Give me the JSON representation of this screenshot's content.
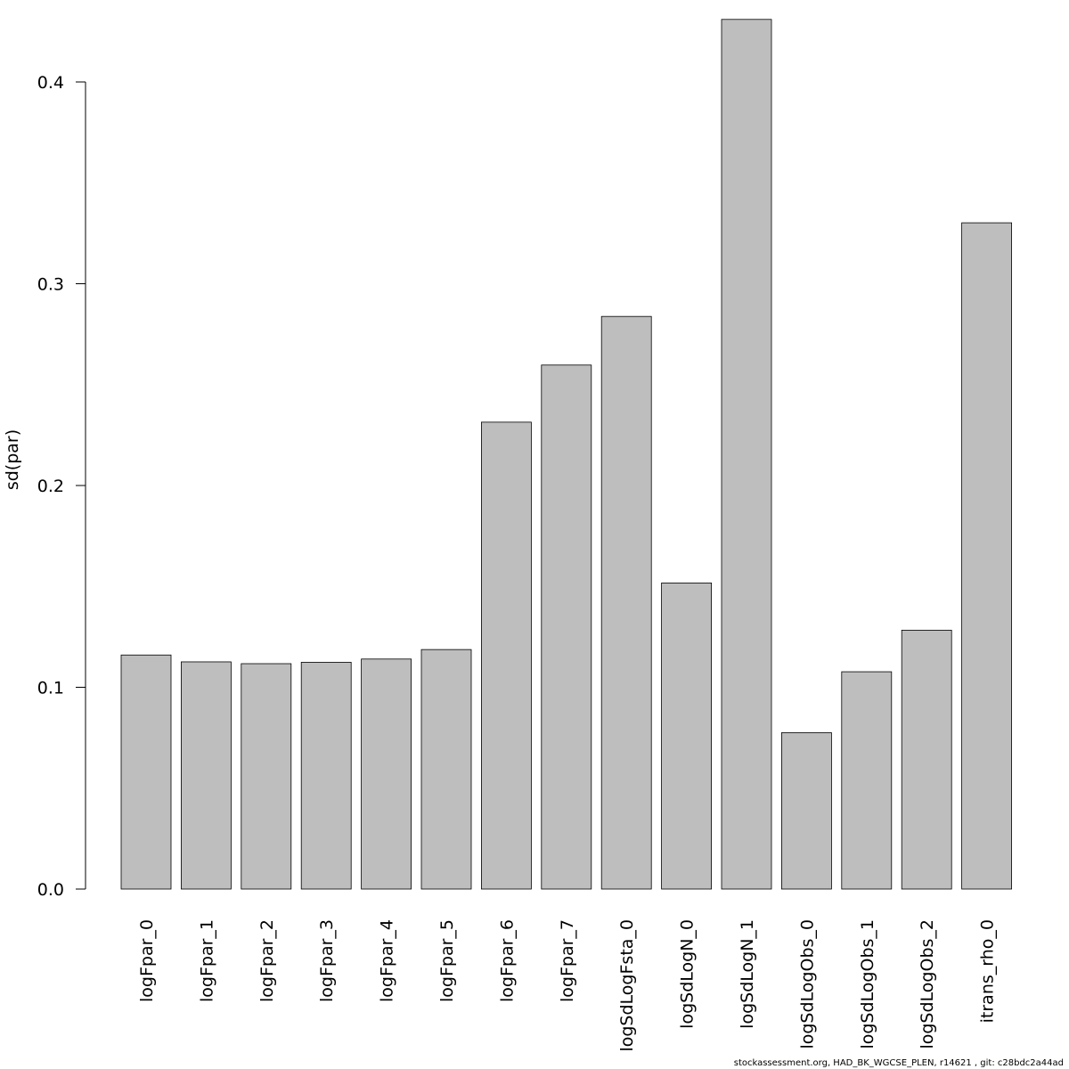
{
  "chart_data": {
    "type": "bar",
    "categories": [
      "logFpar_0",
      "logFpar_1",
      "logFpar_2",
      "logFpar_3",
      "logFpar_4",
      "logFpar_5",
      "logFpar_6",
      "logFpar_7",
      "logSdLogFsta_0",
      "logSdLogN_0",
      "logSdLogN_1",
      "logSdLogObs_0",
      "logSdLogObs_1",
      "logSdLogObs_2",
      "itrans_rho_0"
    ],
    "values": [
      0.116,
      0.1126,
      0.1117,
      0.1124,
      0.114,
      0.1187,
      0.2314,
      0.2597,
      0.2838,
      0.1517,
      0.431,
      0.0775,
      0.1077,
      0.1283,
      0.3302
    ],
    "title": "",
    "xlabel": "",
    "ylabel": "sd(par)",
    "ylim": [
      0,
      0.43
    ],
    "yticks": [
      0.0,
      0.1,
      0.2,
      0.3,
      0.4
    ],
    "ytick_labels": [
      "0.0",
      "0.1",
      "0.2",
      "0.3",
      "0.4"
    ],
    "grid": false,
    "legend": "none",
    "bar_color": "#bebebe",
    "bar_edge_color": "#000000"
  },
  "footer": "stockassessment.org, HAD_BK_WGCSE_PLEN, r14621 , git: c28bdc2a44ad"
}
